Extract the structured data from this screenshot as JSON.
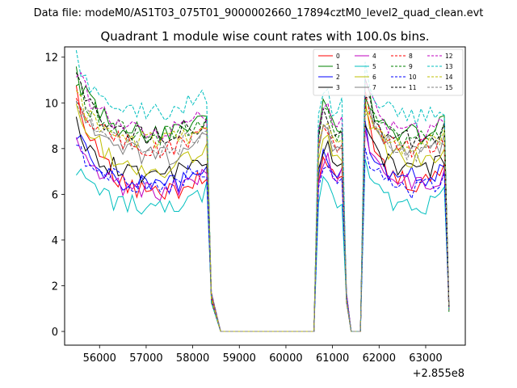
{
  "chart_data": {
    "type": "line",
    "suptitle": "Data file: modeM0/AS1T03_075T01_9000002660_17894cztM0_level2_quad_clean.evt",
    "title": "Quadrant 1 module wise count rates with 100.0s bins.",
    "xlabel": "",
    "ylabel": "",
    "offset_label": "+2.855e8",
    "xlim": [
      55250,
      63850
    ],
    "ylim": [
      -0.6,
      12.45
    ],
    "x_ticks": [
      56000,
      57000,
      58000,
      59000,
      60000,
      61000,
      62000,
      63000
    ],
    "y_ticks": [
      0,
      2,
      4,
      6,
      8,
      10,
      12
    ],
    "legend_position": "top-right",
    "segments": [
      {
        "x_start": 55500,
        "x_end": 58300,
        "shape": "decay"
      },
      {
        "x_start": 58400,
        "x_end": 58400,
        "shape": "drop"
      },
      {
        "x_start": 58600,
        "x_end": 60600,
        "shape": "zero"
      },
      {
        "x_start": 60700,
        "x_end": 61200,
        "shape": "flat"
      },
      {
        "x_start": 61300,
        "x_end": 61300,
        "shape": "drop"
      },
      {
        "x_start": 61400,
        "x_end": 61600,
        "shape": "zero"
      },
      {
        "x_start": 61700,
        "x_end": 63400,
        "shape": "decay"
      },
      {
        "x_start": 63500,
        "x_end": 63500,
        "shape": "end"
      }
    ],
    "series": [
      {
        "name": "0",
        "color": "#ff0000",
        "dash": "solid",
        "start": 10.8,
        "base": 6.0,
        "seg2": 7.0
      },
      {
        "name": "1",
        "color": "#008000",
        "dash": "solid",
        "start": 11.2,
        "base": 8.6,
        "seg2": 9.2
      },
      {
        "name": "2",
        "color": "#0000ff",
        "dash": "solid",
        "start": 8.8,
        "base": 6.3,
        "seg2": 7.3
      },
      {
        "name": "3",
        "color": "#000000",
        "dash": "solid",
        "start": 9.1,
        "base": 6.8,
        "seg2": 7.6
      },
      {
        "name": "4",
        "color": "#bf00bf",
        "dash": "solid",
        "start": 8.6,
        "base": 6.1,
        "seg2": 7.0
      },
      {
        "name": "5",
        "color": "#00bfbf",
        "dash": "solid",
        "start": 7.1,
        "base": 5.4,
        "seg2": 6.1
      },
      {
        "name": "6",
        "color": "#bfbf00",
        "dash": "solid",
        "start": 10.2,
        "base": 7.1,
        "seg2": 8.0
      },
      {
        "name": "7",
        "color": "#808080",
        "dash": "solid",
        "start": 10.5,
        "base": 7.6,
        "seg2": 8.4
      },
      {
        "name": "8",
        "color": "#ff0000",
        "dash": "dashed",
        "start": 10.6,
        "base": 8.0,
        "seg2": 8.6
      },
      {
        "name": "9",
        "color": "#008000",
        "dash": "dashed",
        "start": 11.0,
        "base": 8.5,
        "seg2": 8.9
      },
      {
        "name": "10",
        "color": "#0000ff",
        "dash": "dashed",
        "start": 8.3,
        "base": 6.4,
        "seg2": 6.8
      },
      {
        "name": "11",
        "color": "#000000",
        "dash": "dashed",
        "start": 10.9,
        "base": 8.5,
        "seg2": 9.0
      },
      {
        "name": "12",
        "color": "#bf00bf",
        "dash": "dashed",
        "start": 11.5,
        "base": 8.6,
        "seg2": 9.3
      },
      {
        "name": "13",
        "color": "#00bfbf",
        "dash": "dashed",
        "start": 11.9,
        "base": 9.6,
        "seg2": 10.0
      },
      {
        "name": "14",
        "color": "#bfbf00",
        "dash": "dashed",
        "start": 10.4,
        "base": 8.2,
        "seg2": 8.7
      },
      {
        "name": "15",
        "color": "#808080",
        "dash": "dashed",
        "start": 10.3,
        "base": 7.9,
        "seg2": 8.4
      }
    ]
  }
}
